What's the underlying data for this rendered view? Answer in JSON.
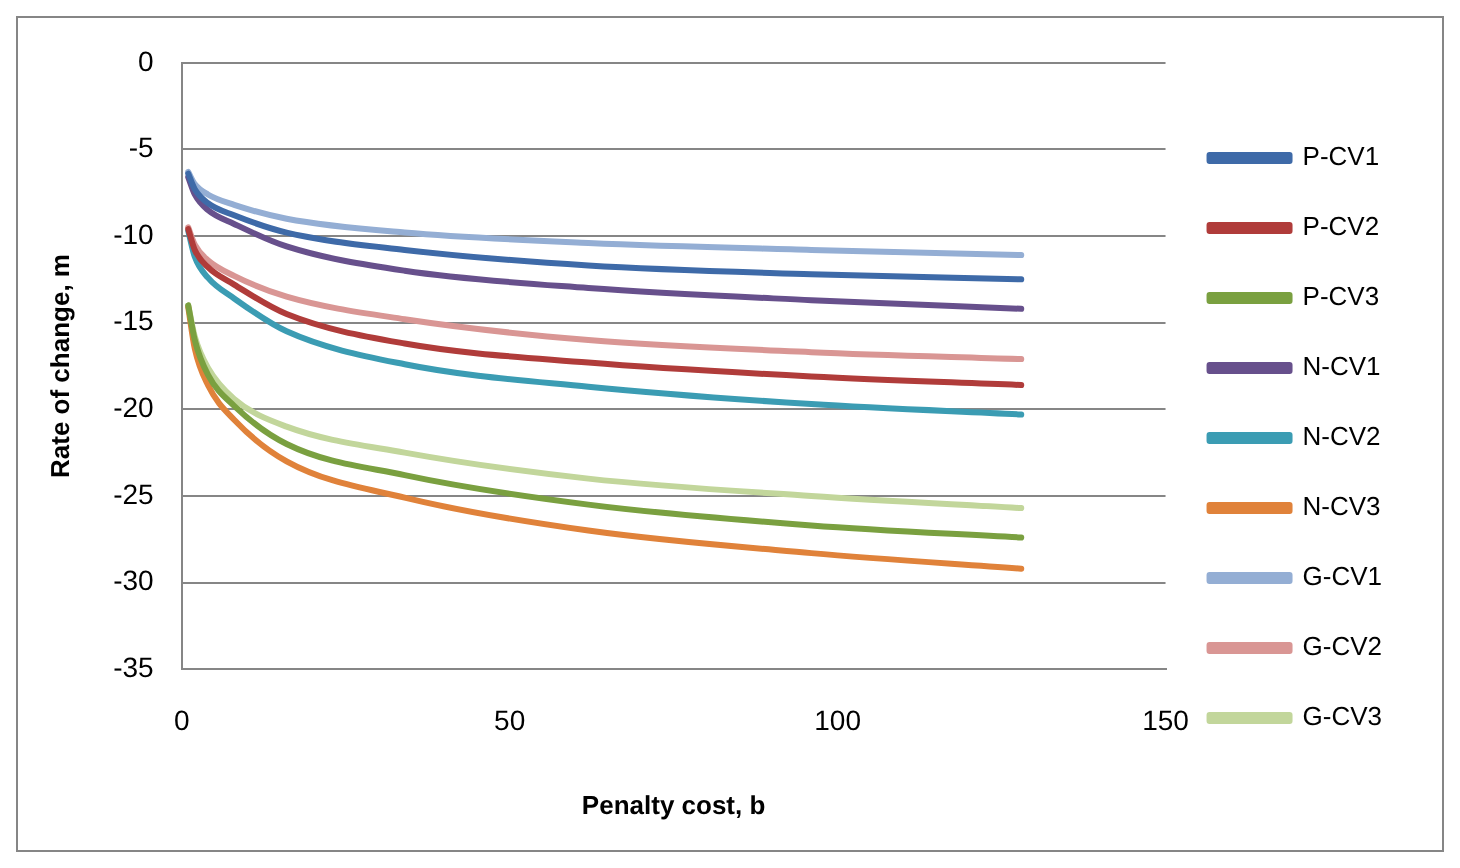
{
  "chart_data": {
    "type": "line",
    "xlabel": "Penalty cost, b",
    "ylabel": "Rate of change, m",
    "x": [
      1,
      2,
      4,
      8,
      16,
      34,
      62,
      96,
      128
    ],
    "xlim": [
      0,
      150
    ],
    "xticks": [
      0,
      50,
      100,
      150
    ],
    "ylim": [
      -35,
      0
    ],
    "yticks": [
      -35,
      -30,
      -25,
      -20,
      -15,
      -10,
      -5,
      0
    ],
    "grid": "y",
    "legend": "right",
    "marker": "none",
    "line_style": "solid",
    "series": [
      {
        "name": "P-CV1",
        "color": "#3e6aa8",
        "values": [
          -6.4,
          -7.3,
          -8.1,
          -8.8,
          -9.8,
          -10.8,
          -11.7,
          -12.2,
          -12.5
        ]
      },
      {
        "name": "P-CV2",
        "color": "#b03c3a",
        "values": [
          -9.6,
          -10.8,
          -11.8,
          -12.8,
          -14.5,
          -16.2,
          -17.3,
          -18.1,
          -18.6
        ]
      },
      {
        "name": "P-CV3",
        "color": "#7aa040",
        "values": [
          -14.0,
          -16.0,
          -18.0,
          -19.8,
          -22.0,
          -23.8,
          -25.5,
          -26.7,
          -27.4
        ]
      },
      {
        "name": "N-CV1",
        "color": "#67508c",
        "values": [
          -6.6,
          -7.6,
          -8.5,
          -9.3,
          -10.6,
          -12.0,
          -13.0,
          -13.7,
          -14.2
        ]
      },
      {
        "name": "N-CV2",
        "color": "#3b9cb3",
        "values": [
          -9.7,
          -11.2,
          -12.4,
          -13.6,
          -15.5,
          -17.4,
          -18.7,
          -19.7,
          -20.3
        ]
      },
      {
        "name": "N-CV3",
        "color": "#e0823a",
        "values": [
          -14.1,
          -16.5,
          -18.6,
          -20.6,
          -23.0,
          -25.1,
          -27.0,
          -28.3,
          -29.2
        ]
      },
      {
        "name": "G-CV1",
        "color": "#94aed4",
        "values": [
          -6.3,
          -7.0,
          -7.6,
          -8.2,
          -9.0,
          -9.8,
          -10.4,
          -10.8,
          -11.1
        ]
      },
      {
        "name": "G-CV2",
        "color": "#d99694",
        "values": [
          -9.5,
          -10.5,
          -11.4,
          -12.3,
          -13.5,
          -14.8,
          -16.0,
          -16.7,
          -17.1
        ]
      },
      {
        "name": "G-CV3",
        "color": "#c2d69b",
        "values": [
          -14.0,
          -15.8,
          -17.6,
          -19.4,
          -21.0,
          -22.5,
          -24.0,
          -25.0,
          -25.7
        ]
      }
    ]
  }
}
